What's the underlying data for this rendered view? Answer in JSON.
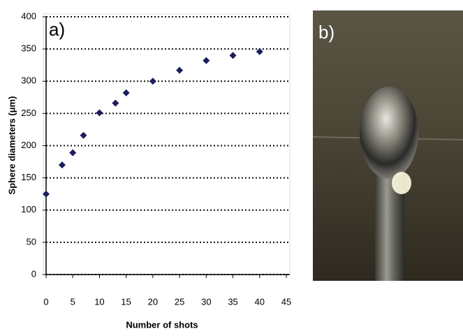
{
  "chart_data": {
    "type": "scatter",
    "annotation": "a)",
    "x_label": "Number of shots",
    "y_label": "Sphere diameters (μm)",
    "x": [
      0,
      3,
      5,
      7,
      10,
      13,
      15,
      20,
      25,
      30,
      35,
      40
    ],
    "values": [
      125,
      170,
      189,
      216,
      251,
      266,
      282,
      300,
      317,
      332,
      340,
      346
    ],
    "color": "#1b1f5c",
    "xlim": [
      0,
      45
    ],
    "xticks": [
      0,
      5,
      10,
      15,
      20,
      25,
      30,
      35,
      40,
      45
    ],
    "ylim": [
      0,
      400
    ],
    "yticks": [
      0,
      50,
      100,
      150,
      200,
      250,
      300,
      350,
      400
    ],
    "grid": true
  },
  "photo": {
    "label": "b)"
  }
}
